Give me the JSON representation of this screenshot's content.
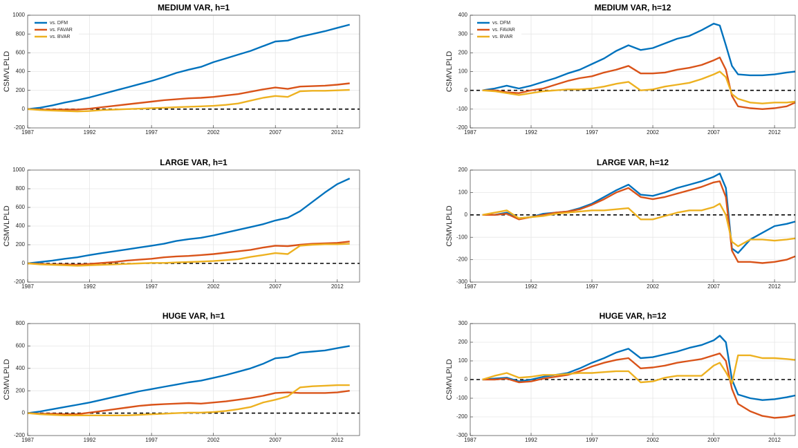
{
  "chart_data": [
    {
      "type": "line",
      "title": "MEDIUM VAR, h=1",
      "ylabel": "CSMVLPLD",
      "x": [
        1987,
        1988,
        1989,
        1990,
        1991,
        1992,
        1993,
        1994,
        1995,
        1996,
        1997,
        1998,
        1999,
        2000,
        2001,
        2002,
        2003,
        2004,
        2005,
        2006,
        2007,
        2008,
        2009,
        2010,
        2011,
        2012,
        2013
      ],
      "xlim": [
        1987,
        2013.8
      ],
      "xticks": [
        1987,
        1992,
        1997,
        2002,
        2007,
        2012
      ],
      "ylim": [
        -200,
        1000
      ],
      "yticks": [
        -200,
        0,
        200,
        400,
        600,
        800,
        1000
      ],
      "grid": true,
      "zero_line": true,
      "legend": "upper left",
      "series": [
        {
          "name": "vs. DFM",
          "color": "#0072bd",
          "values": [
            0,
            15,
            40,
            70,
            95,
            125,
            160,
            195,
            230,
            265,
            300,
            340,
            385,
            420,
            450,
            500,
            540,
            580,
            620,
            670,
            720,
            730,
            770,
            800,
            830,
            865,
            900
          ]
        },
        {
          "name": "vs. FAVAR",
          "color": "#d95319",
          "values": [
            0,
            -5,
            -5,
            -5,
            -5,
            5,
            20,
            35,
            50,
            65,
            80,
            95,
            105,
            115,
            120,
            130,
            145,
            160,
            185,
            210,
            230,
            215,
            240,
            245,
            250,
            260,
            275
          ]
        },
        {
          "name": "vs. BVAR",
          "color": "#edb120",
          "values": [
            0,
            -10,
            -15,
            -20,
            -25,
            -20,
            -10,
            -5,
            0,
            5,
            10,
            15,
            20,
            25,
            30,
            35,
            45,
            60,
            90,
            120,
            140,
            130,
            190,
            195,
            195,
            200,
            205
          ]
        }
      ]
    },
    {
      "type": "line",
      "title": "MEDIUM VAR, h=12",
      "ylabel": "CSMVLPLD",
      "x": [
        1988,
        1989,
        1990,
        1991,
        1992,
        1993,
        1994,
        1995,
        1996,
        1997,
        1998,
        1999,
        2000,
        2001,
        2002,
        2003,
        2004,
        2005,
        2006,
        2007,
        2007.5,
        2008,
        2008.5,
        2009,
        2010,
        2011,
        2012,
        2013,
        2013.7
      ],
      "xlim": [
        1987,
        2013.7
      ],
      "xticks": [
        1987,
        1992,
        1997,
        2002,
        2007,
        2012
      ],
      "ylim": [
        -200,
        400
      ],
      "yticks": [
        -200,
        -100,
        0,
        100,
        200,
        300,
        400
      ],
      "grid": true,
      "zero_line": true,
      "legend": "upper left",
      "series": [
        {
          "name": "vs. DFM",
          "color": "#0072bd",
          "values": [
            0,
            10,
            25,
            10,
            25,
            45,
            65,
            90,
            110,
            140,
            170,
            210,
            240,
            215,
            225,
            250,
            275,
            290,
            320,
            355,
            345,
            240,
            130,
            85,
            80,
            80,
            85,
            95,
            100
          ]
        },
        {
          "name": "vs. FAVAR",
          "color": "#d95319",
          "values": [
            0,
            0,
            -10,
            -15,
            0,
            10,
            30,
            50,
            65,
            75,
            95,
            110,
            130,
            90,
            90,
            95,
            110,
            120,
            135,
            160,
            175,
            110,
            -30,
            -85,
            -95,
            -100,
            -95,
            -85,
            -65
          ]
        },
        {
          "name": "vs. BVAR",
          "color": "#edb120",
          "values": [
            0,
            -5,
            -15,
            -25,
            -15,
            -5,
            0,
            5,
            5,
            10,
            20,
            35,
            45,
            0,
            5,
            20,
            30,
            40,
            60,
            85,
            100,
            70,
            -20,
            -45,
            -65,
            -70,
            -65,
            -65,
            -60
          ]
        }
      ]
    },
    {
      "type": "line",
      "title": "LARGE VAR, h=1",
      "ylabel": "CSMVLPLD",
      "x": [
        1987,
        1988,
        1989,
        1990,
        1991,
        1992,
        1993,
        1994,
        1995,
        1996,
        1997,
        1998,
        1999,
        2000,
        2001,
        2002,
        2003,
        2004,
        2005,
        2006,
        2007,
        2008,
        2009,
        2010,
        2011,
        2012,
        2013
      ],
      "xlim": [
        1987,
        2013.8
      ],
      "xticks": [
        1987,
        1992,
        1997,
        2002,
        2007,
        2012
      ],
      "ylim": [
        -200,
        1000
      ],
      "yticks": [
        -200,
        0,
        200,
        400,
        600,
        800,
        1000
      ],
      "grid": true,
      "zero_line": true,
      "series": [
        {
          "color": "#0072bd",
          "values": [
            0,
            15,
            30,
            50,
            65,
            90,
            110,
            130,
            150,
            170,
            190,
            210,
            240,
            260,
            275,
            300,
            330,
            360,
            390,
            420,
            460,
            490,
            560,
            660,
            760,
            850,
            910
          ]
        },
        {
          "color": "#d95319",
          "values": [
            0,
            -5,
            -10,
            -10,
            -15,
            -5,
            5,
            15,
            30,
            40,
            50,
            65,
            75,
            80,
            90,
            100,
            115,
            130,
            145,
            170,
            190,
            185,
            200,
            210,
            215,
            220,
            235
          ]
        },
        {
          "color": "#edb120",
          "values": [
            0,
            -10,
            -15,
            -20,
            -25,
            -20,
            -15,
            -10,
            -5,
            0,
            5,
            5,
            10,
            15,
            20,
            25,
            35,
            45,
            70,
            90,
            110,
            100,
            190,
            200,
            205,
            205,
            210
          ]
        }
      ]
    },
    {
      "type": "line",
      "title": "LARGE VAR, h=12",
      "ylabel": "CSMVLPLD",
      "x": [
        1988,
        1989,
        1990,
        1991,
        1992,
        1993,
        1994,
        1995,
        1996,
        1997,
        1998,
        1999,
        2000,
        2001,
        2002,
        2003,
        2004,
        2005,
        2006,
        2007,
        2007.5,
        2008,
        2008.5,
        2009,
        2010,
        2011,
        2012,
        2013,
        2013.7
      ],
      "xlim": [
        1987,
        2013.7
      ],
      "xticks": [
        1987,
        1992,
        1997,
        2002,
        2007,
        2012
      ],
      "ylim": [
        -300,
        200
      ],
      "yticks": [
        -300,
        -200,
        -100,
        0,
        100,
        200
      ],
      "grid": true,
      "zero_line": true,
      "series": [
        {
          "color": "#0072bd",
          "values": [
            0,
            0,
            10,
            -15,
            -10,
            5,
            10,
            15,
            30,
            50,
            80,
            110,
            135,
            90,
            85,
            100,
            120,
            135,
            150,
            170,
            185,
            120,
            -150,
            -170,
            -110,
            -80,
            -50,
            -40,
            -30
          ]
        },
        {
          "color": "#d95319",
          "values": [
            0,
            0,
            5,
            -20,
            -10,
            0,
            10,
            15,
            25,
            45,
            70,
            100,
            120,
            80,
            70,
            80,
            95,
            110,
            125,
            145,
            150,
            80,
            -160,
            -210,
            -210,
            -215,
            -210,
            -200,
            -185
          ]
        },
        {
          "color": "#edb120",
          "values": [
            0,
            10,
            20,
            -15,
            -10,
            -5,
            5,
            10,
            15,
            20,
            20,
            25,
            30,
            -20,
            -20,
            -5,
            10,
            20,
            20,
            35,
            50,
            0,
            -120,
            -140,
            -110,
            -110,
            -115,
            -110,
            -105
          ]
        }
      ]
    },
    {
      "type": "line",
      "title": "HUGE VAR, h=1",
      "ylabel": "CSMVLPLD",
      "x": [
        1987,
        1988,
        1989,
        1990,
        1991,
        1992,
        1993,
        1994,
        1995,
        1996,
        1997,
        1998,
        1999,
        2000,
        2001,
        2002,
        2003,
        2004,
        2005,
        2006,
        2007,
        2008,
        2009,
        2010,
        2011,
        2012,
        2013
      ],
      "xlim": [
        1987,
        2013.8
      ],
      "xticks": [
        1987,
        1992,
        1997,
        2002,
        2007,
        2012
      ],
      "ylim": [
        -200,
        800
      ],
      "yticks": [
        -200,
        0,
        200,
        400,
        600,
        800
      ],
      "grid": true,
      "zero_line": true,
      "series": [
        {
          "color": "#0072bd",
          "values": [
            0,
            15,
            35,
            55,
            75,
            95,
            120,
            145,
            170,
            195,
            215,
            235,
            255,
            275,
            290,
            315,
            340,
            370,
            400,
            440,
            490,
            500,
            540,
            550,
            560,
            580,
            600
          ]
        },
        {
          "color": "#d95319",
          "values": [
            0,
            -5,
            -5,
            -10,
            -10,
            5,
            20,
            35,
            50,
            65,
            75,
            80,
            85,
            90,
            85,
            95,
            105,
            120,
            135,
            155,
            180,
            185,
            180,
            180,
            180,
            185,
            200
          ]
        },
        {
          "color": "#edb120",
          "values": [
            0,
            -10,
            -15,
            -20,
            -20,
            -20,
            -20,
            -20,
            -20,
            -15,
            -10,
            -5,
            0,
            5,
            5,
            10,
            20,
            35,
            55,
            95,
            120,
            150,
            230,
            240,
            245,
            250,
            250
          ]
        }
      ]
    },
    {
      "type": "line",
      "title": "HUGE VAR, h=12",
      "ylabel": "CSMVLPLD",
      "x": [
        1988,
        1989,
        1990,
        1991,
        1992,
        1993,
        1994,
        1995,
        1996,
        1997,
        1998,
        1999,
        2000,
        2001,
        2002,
        2003,
        2004,
        2005,
        2006,
        2007,
        2007.5,
        2008,
        2008.5,
        2009,
        2010,
        2011,
        2012,
        2013,
        2013.7
      ],
      "xlim": [
        1987,
        2013.7
      ],
      "xticks": [
        1987,
        1992,
        1997,
        2002,
        2007,
        2012
      ],
      "ylim": [
        -300,
        300
      ],
      "yticks": [
        -300,
        -200,
        -100,
        0,
        100,
        200,
        300
      ],
      "grid": true,
      "zero_line": true,
      "series": [
        {
          "color": "#0072bd",
          "values": [
            0,
            5,
            10,
            -10,
            0,
            15,
            25,
            35,
            60,
            90,
            115,
            145,
            165,
            115,
            120,
            135,
            150,
            170,
            185,
            210,
            235,
            200,
            0,
            -80,
            -100,
            -110,
            -105,
            -95,
            -85
          ]
        },
        {
          "color": "#d95319",
          "values": [
            0,
            0,
            5,
            -15,
            -10,
            5,
            15,
            25,
            45,
            70,
            90,
            105,
            115,
            60,
            65,
            75,
            90,
            100,
            110,
            130,
            140,
            100,
            -50,
            -130,
            -170,
            -195,
            -205,
            -200,
            -190
          ]
        },
        {
          "color": "#edb120",
          "values": [
            0,
            20,
            35,
            10,
            15,
            25,
            25,
            30,
            35,
            35,
            40,
            45,
            45,
            -15,
            -10,
            10,
            20,
            20,
            20,
            75,
            90,
            40,
            -20,
            130,
            130,
            115,
            115,
            110,
            105
          ]
        }
      ]
    }
  ]
}
